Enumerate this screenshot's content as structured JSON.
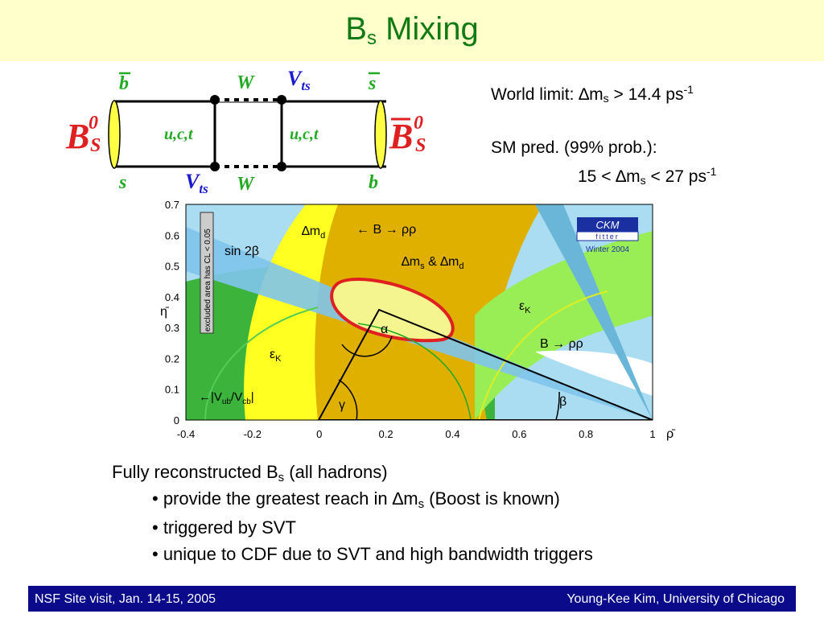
{
  "slide": {
    "title": "B",
    "title_sub": "s",
    "title_rest": " Mixing"
  },
  "diagram": {
    "left_meson": "B",
    "left_meson_sup": "0",
    "left_meson_sub": "S",
    "right_meson": "B",
    "right_meson_sup": "0",
    "right_meson_sub": "S",
    "q_top_left": "b",
    "q_bottom_left": "s",
    "q_top_right": "s",
    "q_bottom_right": "b",
    "w_top": "W",
    "w_bottom": "W",
    "vts_top": "V",
    "vts_top_sub": "ts",
    "vts_bottom": "V",
    "vts_bottom_sub": "ts",
    "loop_left": "u,c,t",
    "loop_right": "u,c,t"
  },
  "info": {
    "line1_a": "World limit: ∆m",
    "line1_sub": "s",
    "line1_b": " > 14.4 ps",
    "line1_sup": "-1",
    "line2": "SM pred. (99% prob.):",
    "line3_a": "15 < ∆m",
    "line3_sub": "s",
    "line3_b": " < 27 ps",
    "line3_sup": "-1"
  },
  "chart_data": {
    "type": "diagram",
    "xlabel": "ρ̄",
    "ylabel": "η̄",
    "xlim": [
      -0.4,
      1.0
    ],
    "ylim": [
      0,
      0.7
    ],
    "x_ticks": [
      "-0.4",
      "-0.2",
      "0",
      "0.2",
      "0.4",
      "0.6",
      "0.8",
      "1"
    ],
    "y_ticks": [
      "0.7",
      "0.6",
      "0.5",
      "0.4",
      "0.3",
      "0.2",
      "0.1",
      "0"
    ],
    "apex": [
      0.2,
      0.36
    ],
    "labels": {
      "dmd": "∆m",
      "dmd_sub": "d",
      "brr_top": "← B → ρρ",
      "sin2b": "sin 2β",
      "dms_dmd": "∆m",
      "dms_dmd_s": "s",
      "dms_dmd_amp": " & ∆m",
      "dms_dmd_d": "d",
      "eps_right": "ε",
      "eps_right_sub": "K",
      "eps_left": "ε",
      "eps_left_sub": "K",
      "brr_right": "B → ρρ",
      "alpha": "α",
      "beta": "β",
      "gamma": "γ",
      "vub": "←|V",
      "vub_sub1": "ub",
      "vub_mid": "/V",
      "vub_sub2": "cb",
      "vub_end": "|",
      "excluded": "excluded area has CL < 0.05"
    },
    "ckm_logo": {
      "top": "CKM",
      "mid": "fitter",
      "bottom": "Winter 2004"
    }
  },
  "bullets": {
    "heading_a": "Fully reconstructed B",
    "heading_sub": "s",
    "heading_b": " (all hadrons)",
    "b1_a": "• provide the greatest reach in ∆m",
    "b1_sub": "s",
    "b1_b": " (Boost is known)",
    "b2": "• triggered by SVT",
    "b3": "• unique to CDF due to SVT and high bandwidth triggers"
  },
  "footer": {
    "left": "NSF Site visit, Jan. 14-15, 2005",
    "right": "Young-Kee Kim, University of Chicago"
  },
  "colors": {
    "title_green": "#127a12",
    "title_bg": "#ffffcc",
    "footer_bg": "#0a0a8a",
    "dms_orange": "#dfb000",
    "dmd_yellow": "#ffff00",
    "eps_green": "#44bb44",
    "eps_light": "#99ee55",
    "sin_blue": "#a8d8f0",
    "ellipse_red": "#e02020"
  }
}
